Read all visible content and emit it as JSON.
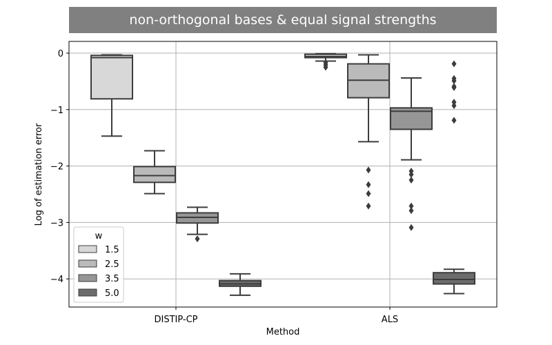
{
  "chart_data": {
    "type": "boxplot",
    "title": "non-orthogonal bases & equal signal strengths",
    "xlabel": "Method",
    "ylabel": "Log of estimation error",
    "categories": [
      "DISTIP-CP",
      "ALS"
    ],
    "yticks": [
      0,
      -1,
      -2,
      -3,
      -4
    ],
    "ytick_labels": [
      "0",
      "−1",
      "−2",
      "−3",
      "−4"
    ],
    "ylim": [
      -4.5,
      0.2
    ],
    "grid": true,
    "legend": {
      "title": "w",
      "placement": "lower-left",
      "entries": [
        "1.5",
        "2.5",
        "3.5",
        "5.0"
      ]
    },
    "series": [
      {
        "name": "1.5",
        "color": "#d8d8d8",
        "boxes": [
          {
            "min": -1.47,
            "q1": -0.81,
            "median": -0.08,
            "q3": -0.04,
            "max": -0.03,
            "outliers": []
          },
          {
            "min": -0.14,
            "q1": -0.08,
            "median": -0.06,
            "q3": -0.02,
            "max": -0.01,
            "outliers": [
              -0.17,
              -0.21,
              -0.25
            ]
          }
        ]
      },
      {
        "name": "2.5",
        "color": "#bababa",
        "boxes": [
          {
            "min": -2.49,
            "q1": -2.29,
            "median": -2.17,
            "q3": -2.01,
            "max": -1.73,
            "outliers": []
          },
          {
            "min": -1.57,
            "q1": -0.79,
            "median": -0.48,
            "q3": -0.19,
            "max": -0.03,
            "outliers": [
              -2.07,
              -2.33,
              -2.49,
              -2.71
            ]
          }
        ]
      },
      {
        "name": "3.5",
        "color": "#969696",
        "boxes": [
          {
            "min": -3.21,
            "q1": -3.01,
            "median": -2.91,
            "q3": -2.83,
            "max": -2.73,
            "outliers": [
              -3.29
            ]
          },
          {
            "min": -1.89,
            "q1": -1.35,
            "median": -1.03,
            "q3": -0.97,
            "max": -0.44,
            "outliers": [
              -2.09,
              -2.15,
              -2.25,
              -2.71,
              -2.79,
              -3.09
            ]
          }
        ]
      },
      {
        "name": "5.0",
        "color": "#6c6c6c",
        "boxes": [
          {
            "min": -4.29,
            "q1": -4.13,
            "median": -4.09,
            "q3": -4.03,
            "max": -3.91,
            "outliers": []
          },
          {
            "min": -4.26,
            "q1": -4.09,
            "median": -4.01,
            "q3": -3.89,
            "max": -3.83,
            "outliers": [
              -0.19,
              -0.45,
              -0.49,
              -0.59,
              -0.61,
              -0.87,
              -0.93,
              -1.19
            ]
          }
        ]
      }
    ]
  }
}
